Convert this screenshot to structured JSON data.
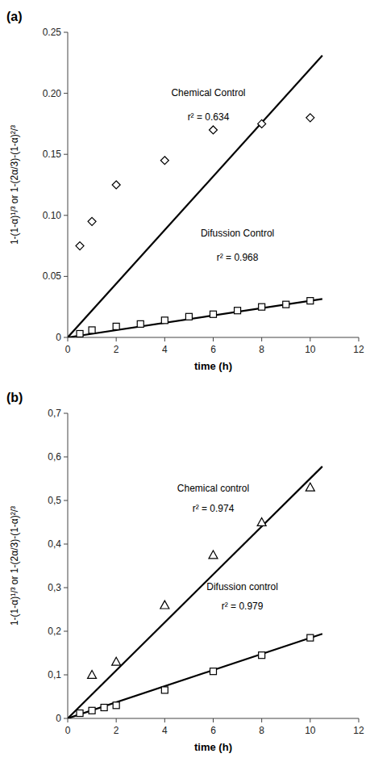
{
  "chart_data": [
    {
      "type": "scatter",
      "title": "(a)",
      "x_label": "time (h)",
      "y_label": "1-(1-α)¹/³ or 1-(2α/3)-(1-α)²/³",
      "grid": false,
      "xlim": [
        0,
        12
      ],
      "xticks": [
        0,
        2,
        4,
        6,
        8,
        10,
        12
      ],
      "ylim": [
        0.0,
        0.25
      ],
      "yticks": [
        0,
        0.05,
        {
          "value": 0.1,
          "label": "0.10"
        },
        0.15,
        {
          "value": 0.2,
          "label": "0.20"
        },
        0.25
      ],
      "series": [
        {
          "type": "line",
          "color": "#000000",
          "x": [
            0.0,
            10.5
          ],
          "values": [
            0.0,
            0.231
          ]
        },
        {
          "type": "line",
          "color": "#000000",
          "x": [
            0.0,
            10.5
          ],
          "values": [
            0.0,
            0.0315
          ]
        },
        {
          "type": "scatter",
          "marker": "diamond",
          "color": "#000000",
          "x": [
            0.5,
            1.0,
            2.0,
            4.0,
            6.0,
            8.0,
            10.0
          ],
          "values": [
            0.075,
            0.095,
            0.125,
            0.145,
            0.17,
            0.175,
            0.18
          ]
        },
        {
          "type": "scatter",
          "marker": "square",
          "color": "#000000",
          "x": [
            0.5,
            1.0,
            2.0,
            3.0,
            4.0,
            5.0,
            6.0,
            7.0,
            8.0,
            9.0,
            10.0
          ],
          "values": [
            0.003,
            0.006,
            0.009,
            0.011,
            0.014,
            0.017,
            0.019,
            0.022,
            0.025,
            0.027,
            0.03
          ]
        }
      ],
      "annotations": [
        {
          "text": "Chemical Control",
          "x": 5.8,
          "y": 0.198
        },
        {
          "text": "r² = 0.634",
          "x": 5.8,
          "y": 0.178
        },
        {
          "text": "Difussion Control",
          "x": 7.0,
          "y": 0.083
        },
        {
          "text": "r² = 0.968",
          "x": 7.0,
          "y": 0.063
        }
      ]
    },
    {
      "type": "scatter",
      "title": "(b)",
      "x_label": "time (h)",
      "y_label": "1-(1-α)¹/³ or 1-(2α/3)-(1-α)²/³",
      "grid": false,
      "xlim": [
        0,
        12
      ],
      "xticks": [
        0,
        2,
        4,
        6,
        8,
        10,
        12
      ],
      "ylim": [
        0.0,
        0.7
      ],
      "yticks": [
        0,
        {
          "value": 0.1,
          "label": "0,1"
        },
        {
          "value": 0.2,
          "label": "0,2"
        },
        {
          "value": 0.3,
          "label": "0,3"
        },
        {
          "value": 0.4,
          "label": "0,4"
        },
        {
          "value": 0.5,
          "label": "0,5"
        },
        {
          "value": 0.6,
          "label": "0,6"
        },
        {
          "value": 0.7,
          "label": "0,7"
        }
      ],
      "series": [
        {
          "type": "line",
          "color": "#000000",
          "x": [
            0.0,
            10.5
          ],
          "values": [
            0.0,
            0.578
          ]
        },
        {
          "type": "line",
          "color": "#000000",
          "x": [
            0.0,
            10.5
          ],
          "values": [
            0.0,
            0.194
          ]
        },
        {
          "type": "scatter",
          "marker": "triangle",
          "color": "#000000",
          "x": [
            1.0,
            2.0,
            4.0,
            6.0,
            8.0,
            10.0
          ],
          "values": [
            0.1,
            0.13,
            0.26,
            0.375,
            0.45,
            0.53
          ]
        },
        {
          "type": "scatter",
          "marker": "square",
          "color": "#000000",
          "x": [
            0.5,
            1.0,
            1.5,
            2.0,
            4.0,
            6.0,
            8.0,
            10.0
          ],
          "values": [
            0.012,
            0.018,
            0.025,
            0.03,
            0.065,
            0.108,
            0.145,
            0.185
          ]
        }
      ],
      "annotations": [
        {
          "text": "Chemical control",
          "x": 6.0,
          "y": 0.52
        },
        {
          "text": "r² = 0.974",
          "x": 6.0,
          "y": 0.475
        },
        {
          "text": "Difussion control",
          "x": 7.2,
          "y": 0.295
        },
        {
          "text": "r² = 0.979",
          "x": 7.2,
          "y": 0.25
        }
      ]
    }
  ]
}
